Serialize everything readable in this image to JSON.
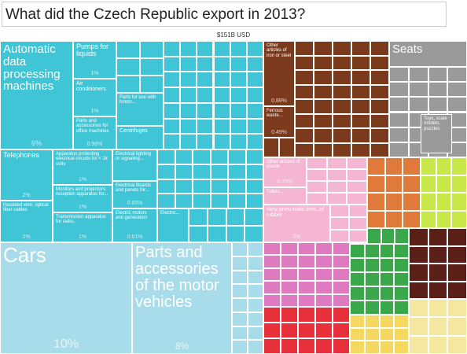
{
  "chart_data": {
    "type": "treemap",
    "title": "What did the Czech Republic export in 2013?",
    "total_label": "$151B USD",
    "names": [
      "Automatic data processing machines",
      "Pumps for liquids",
      "Air conditioners",
      "Parts and accessories for office machines",
      "Parts for use with hoists...",
      "Centrifuges",
      "Telephones",
      "Insulated wire; optical fiber cables",
      "Apparatus protecting electrical circuits for < 1k volts",
      "Monitors and projectors; reception apparatus for...",
      "Transmission apparatus for radio...",
      "Electrical lighting or signaling...",
      "Electrical Boards and panels for...",
      "Electric motors and generators",
      "Electric...",
      "Cars",
      "Parts and accessories of the motor vehicles",
      "Other articles of iron or steel",
      "Ferrous waste...",
      "Seats",
      "Toys, scale models, puzzles",
      "Other articles of plastic",
      "Tubes...",
      "New pneumatic tires, of rubber"
    ],
    "values": [
      6,
      1,
      1,
      0.98,
      0.6,
      0.5,
      2,
      2,
      1,
      1,
      1,
      0.7,
      0.65,
      0.61,
      0.5,
      10,
      8,
      0.89,
      0.49,
      1.5,
      0.6,
      0.75,
      0.5,
      2
    ],
    "value_labels": [
      "6%",
      "1%",
      "1%",
      "0.98%",
      null,
      null,
      "2%",
      "2%",
      "1%",
      "1%",
      "1%",
      null,
      "0.65%",
      "0.61%",
      null,
      "10%",
      "8%",
      "0.89%",
      "0.49%",
      null,
      null,
      "0.75%",
      null,
      "2%"
    ],
    "colors": [
      "#3fc5d6",
      "#3fc5d6",
      "#3fc5d6",
      "#3fc5d6",
      "#3fc5d6",
      "#3fc5d6",
      "#3fc5d6",
      "#3fc5d6",
      "#3fc5d6",
      "#3fc5d6",
      "#3fc5d6",
      "#3fc5d6",
      "#3fc5d6",
      "#3fc5d6",
      "#3fc5d6",
      "#a9dcea",
      "#a9dcea",
      "#7b3a1c",
      "#7b3a1c",
      "#9a9a9a",
      "#9a9a9a",
      "#f4b6d2",
      "#f4b6d2",
      "#f4b6d2"
    ]
  }
}
